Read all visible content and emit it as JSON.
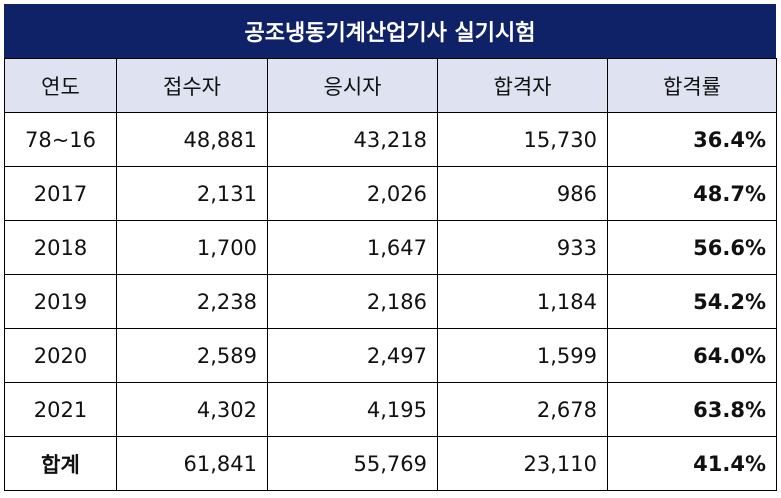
{
  "title": "공조냉동기계산업기사 실기시험",
  "headers": [
    "연도",
    "접수자",
    "응시자",
    "합격자",
    "합격률"
  ],
  "rows": [
    {
      "year": "78~16",
      "applicants": "48,881",
      "examinees": "43,218",
      "passers": "15,730",
      "rate": "36.4%"
    },
    {
      "year": "2017",
      "applicants": "2,131",
      "examinees": "2,026",
      "passers": "986",
      "rate": "48.7%"
    },
    {
      "year": "2018",
      "applicants": "1,700",
      "examinees": "1,647",
      "passers": "933",
      "rate": "56.6%"
    },
    {
      "year": "2019",
      "applicants": "2,238",
      "examinees": "2,186",
      "passers": "1,184",
      "rate": "54.2%"
    },
    {
      "year": "2020",
      "applicants": "2,589",
      "examinees": "2,497",
      "passers": "1,599",
      "rate": "64.0%"
    },
    {
      "year": "2021",
      "applicants": "4,302",
      "examinees": "4,195",
      "passers": "2,678",
      "rate": "63.8%"
    },
    {
      "year": "합계",
      "applicants": "61,841",
      "examinees": "55,769",
      "passers": "23,110",
      "rate": "41.4%"
    }
  ],
  "colors": {
    "title_bg": "#0f2268",
    "header_bg": "#dfe3f1"
  }
}
